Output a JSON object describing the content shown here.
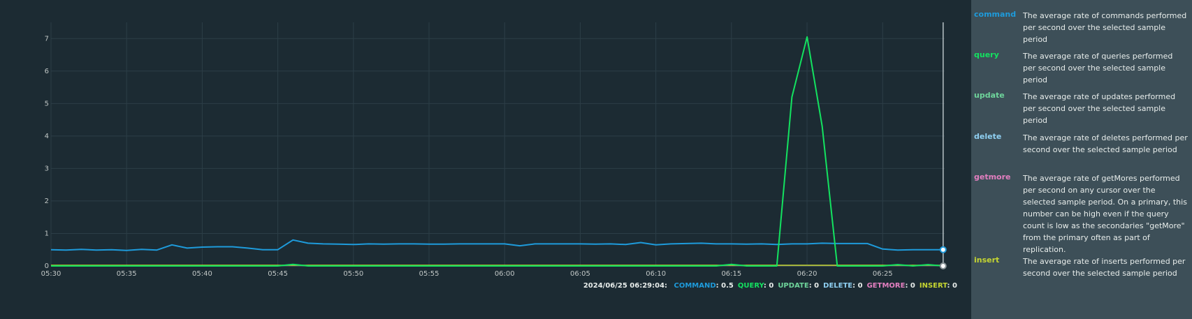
{
  "chart_data": {
    "type": "line",
    "x_ticks": [
      "05:30",
      "05:35",
      "05:40",
      "05:45",
      "05:50",
      "05:55",
      "06:00",
      "06:05",
      "06:10",
      "06:15",
      "06:20",
      "06:25"
    ],
    "y_ticks": [
      "0",
      "1",
      "2",
      "3",
      "4",
      "5",
      "6",
      "7"
    ],
    "ylim": [
      0,
      7.5
    ],
    "xlim_minutes": [
      0,
      59.1
    ],
    "grid": true,
    "colors": {
      "command": "#1e9bdb",
      "query": "#13e260",
      "update": "#6ed49b",
      "delete": "#8fd0f2",
      "getmore": "#e37fc0",
      "insert": "#c5d531"
    },
    "series": [
      {
        "name": "command",
        "x": [
          0,
          1,
          2,
          3,
          4,
          5,
          6,
          7,
          8,
          9,
          10,
          11,
          12,
          13,
          14,
          15,
          16,
          17,
          18,
          19,
          20,
          21,
          22,
          23,
          24,
          25,
          26,
          27,
          28,
          29,
          30,
          31,
          32,
          33,
          34,
          35,
          36,
          37,
          38,
          39,
          40,
          41,
          42,
          43,
          44,
          45,
          46,
          47,
          48,
          49,
          50,
          51,
          52,
          53,
          54,
          55,
          56,
          57,
          58,
          59
        ],
        "values": [
          0.5,
          0.49,
          0.51,
          0.49,
          0.5,
          0.48,
          0.51,
          0.49,
          0.65,
          0.55,
          0.58,
          0.59,
          0.59,
          0.55,
          0.5,
          0.5,
          0.8,
          0.7,
          0.68,
          0.67,
          0.66,
          0.68,
          0.67,
          0.68,
          0.68,
          0.67,
          0.67,
          0.68,
          0.68,
          0.68,
          0.68,
          0.62,
          0.68,
          0.68,
          0.68,
          0.68,
          0.67,
          0.68,
          0.66,
          0.72,
          0.65,
          0.68,
          0.69,
          0.7,
          0.68,
          0.68,
          0.67,
          0.68,
          0.66,
          0.68,
          0.68,
          0.7,
          0.69,
          0.69,
          0.69,
          0.52,
          0.49,
          0.5,
          0.5,
          0.5
        ]
      },
      {
        "name": "query",
        "x": [
          0,
          15,
          16,
          17,
          18,
          44,
          45,
          46,
          47,
          48,
          49,
          50,
          51,
          52,
          53,
          55,
          56,
          57,
          58,
          59
        ],
        "values": [
          0,
          0,
          0.05,
          0,
          0,
          0,
          0.05,
          0,
          0,
          0,
          5.2,
          7.05,
          4.3,
          0,
          0,
          0,
          0.04,
          0,
          0.04,
          0
        ]
      }
    ],
    "cursor": {
      "x": 59,
      "command": 0.5,
      "insert": 0
    }
  },
  "readout": {
    "timestamp": "2024/06/25 06:29:04:",
    "items": [
      {
        "key": "COMMAND",
        "value": "0.5",
        "color": "#1e9bdb"
      },
      {
        "key": "QUERY",
        "value": "0",
        "color": "#13e260"
      },
      {
        "key": "UPDATE",
        "value": "0",
        "color": "#6ed49b"
      },
      {
        "key": "DELETE",
        "value": "0",
        "color": "#8fd0f2"
      },
      {
        "key": "GETMORE",
        "value": "0",
        "color": "#e37fc0"
      },
      {
        "key": "INSERT",
        "value": "0",
        "color": "#c5d531"
      }
    ]
  },
  "legend": [
    {
      "key": "command",
      "color": "#1e9bdb",
      "desc": "The average rate of commands performed per second over the selected sample period"
    },
    {
      "key": "query",
      "color": "#13e260",
      "desc": "The average rate of queries performed per second over the selected sample period"
    },
    {
      "key": "update",
      "color": "#6ed49b",
      "desc": "The average rate of updates performed per second over the selected sample period"
    },
    {
      "key": "delete",
      "color": "#8fd0f2",
      "desc": "The average rate of deletes performed per second over the selected sample period"
    },
    {
      "key": "getmore",
      "color": "#e37fc0",
      "desc": "The average rate of getMores performed per second on any cursor over the selected sample period. On a primary, this number can be high even if the query count is low as the secondaries \"getMore\" from the primary often as part of replication."
    },
    {
      "key": "insert",
      "color": "#c5d531",
      "desc": "The average rate of inserts performed per second over the selected sample period"
    }
  ]
}
